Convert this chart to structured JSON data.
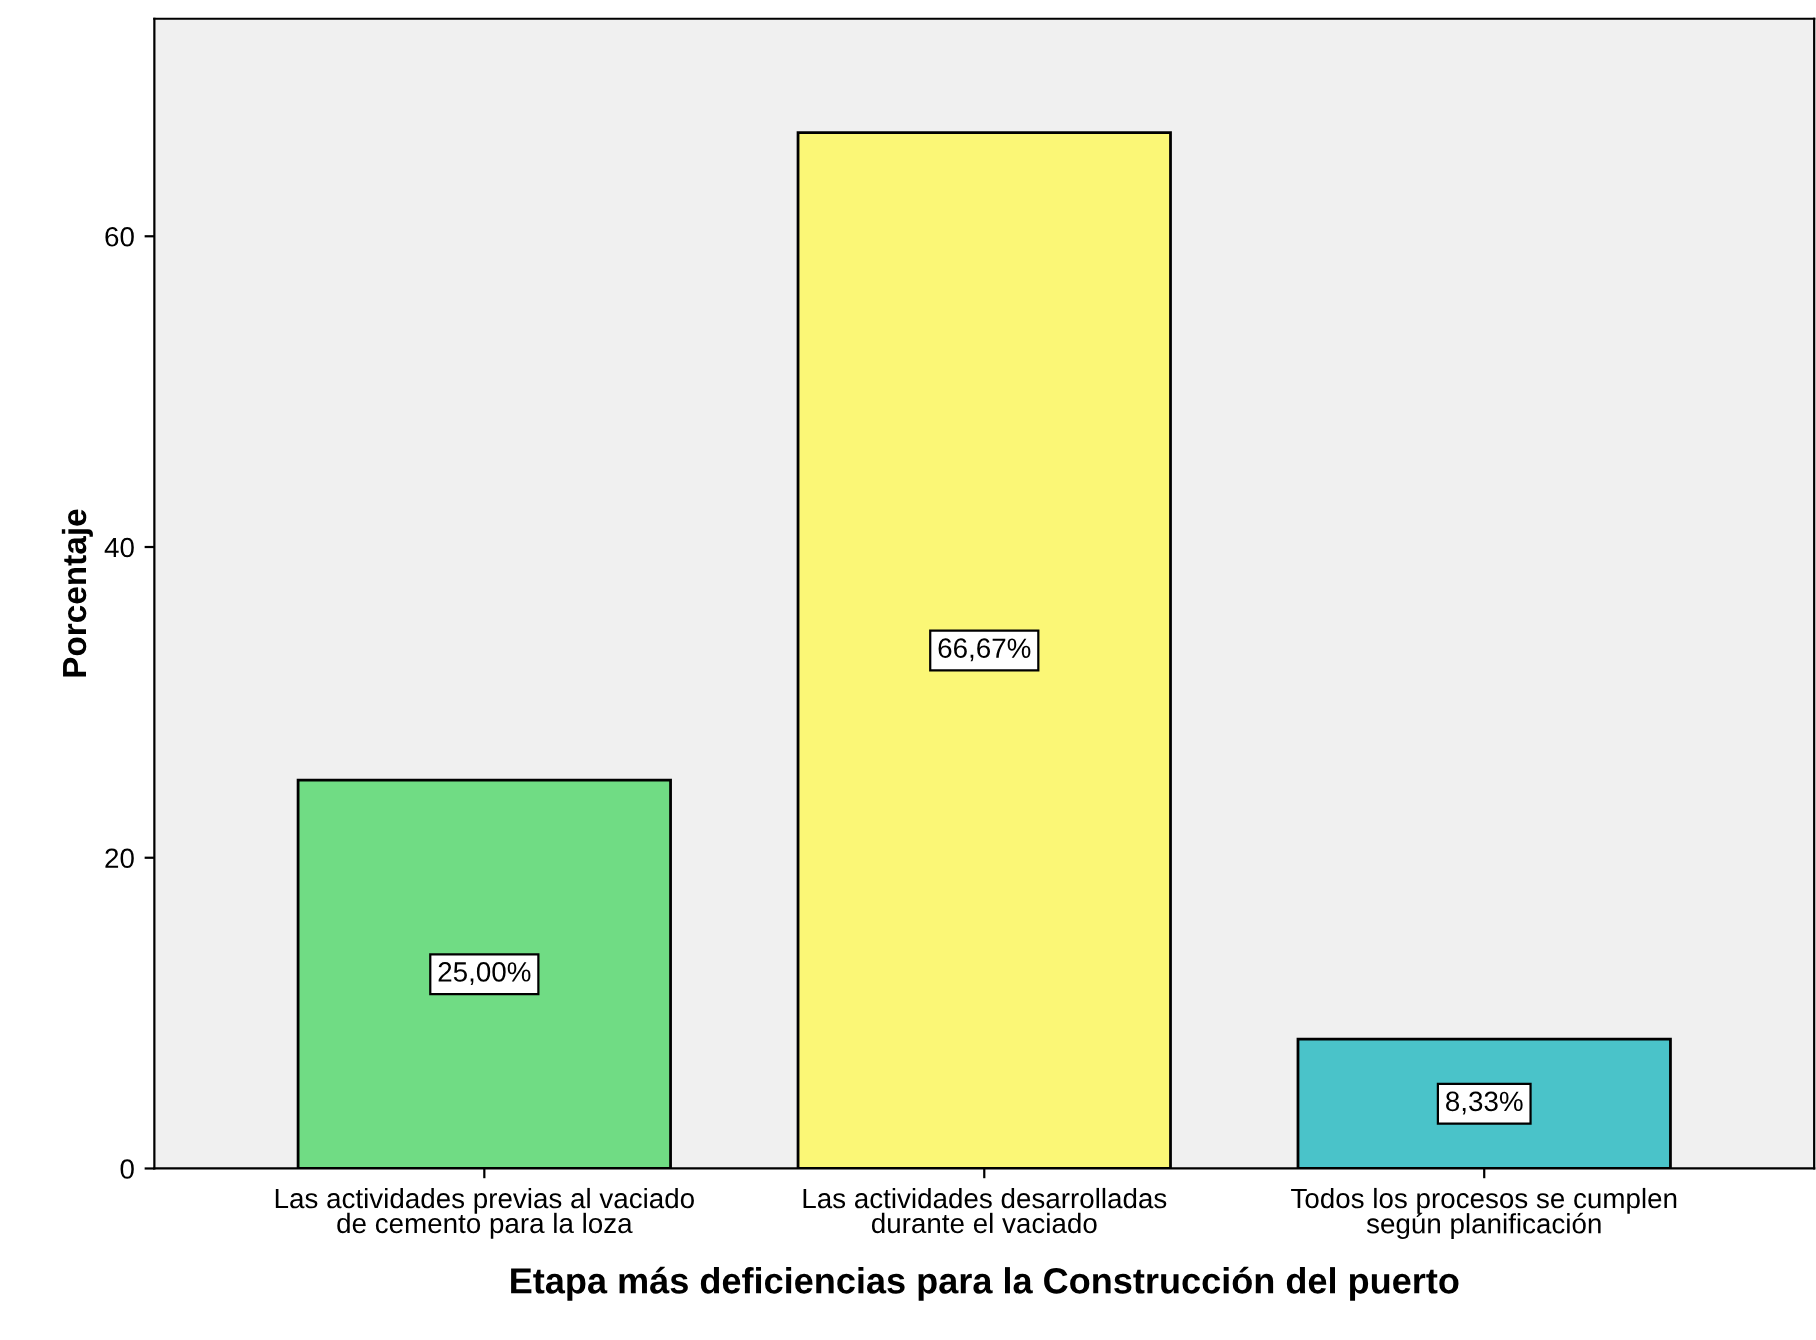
{
  "chart_data": {
    "type": "bar",
    "xlabel": "Etapa más deficiencias para la Construcción del puerto",
    "ylabel": "Porcentaje",
    "categories": [
      "Las actividades previas al vaciado\nde cemento para la loza",
      "Las actividades desarrolladas\ndurante el vaciado",
      "Todos los procesos se cumplen\nsegún planificación"
    ],
    "values": [
      25.0,
      66.67,
      8.33
    ],
    "colors": [
      "#70dc84",
      "#fbf776",
      "#4ac3c9"
    ],
    "value_labels": [
      "25,00%",
      "66,67%",
      "8,33%"
    ],
    "ylim": [
      0,
      74
    ],
    "yticks": [
      0,
      20,
      40,
      60
    ],
    "grid": false,
    "legend": false
  }
}
